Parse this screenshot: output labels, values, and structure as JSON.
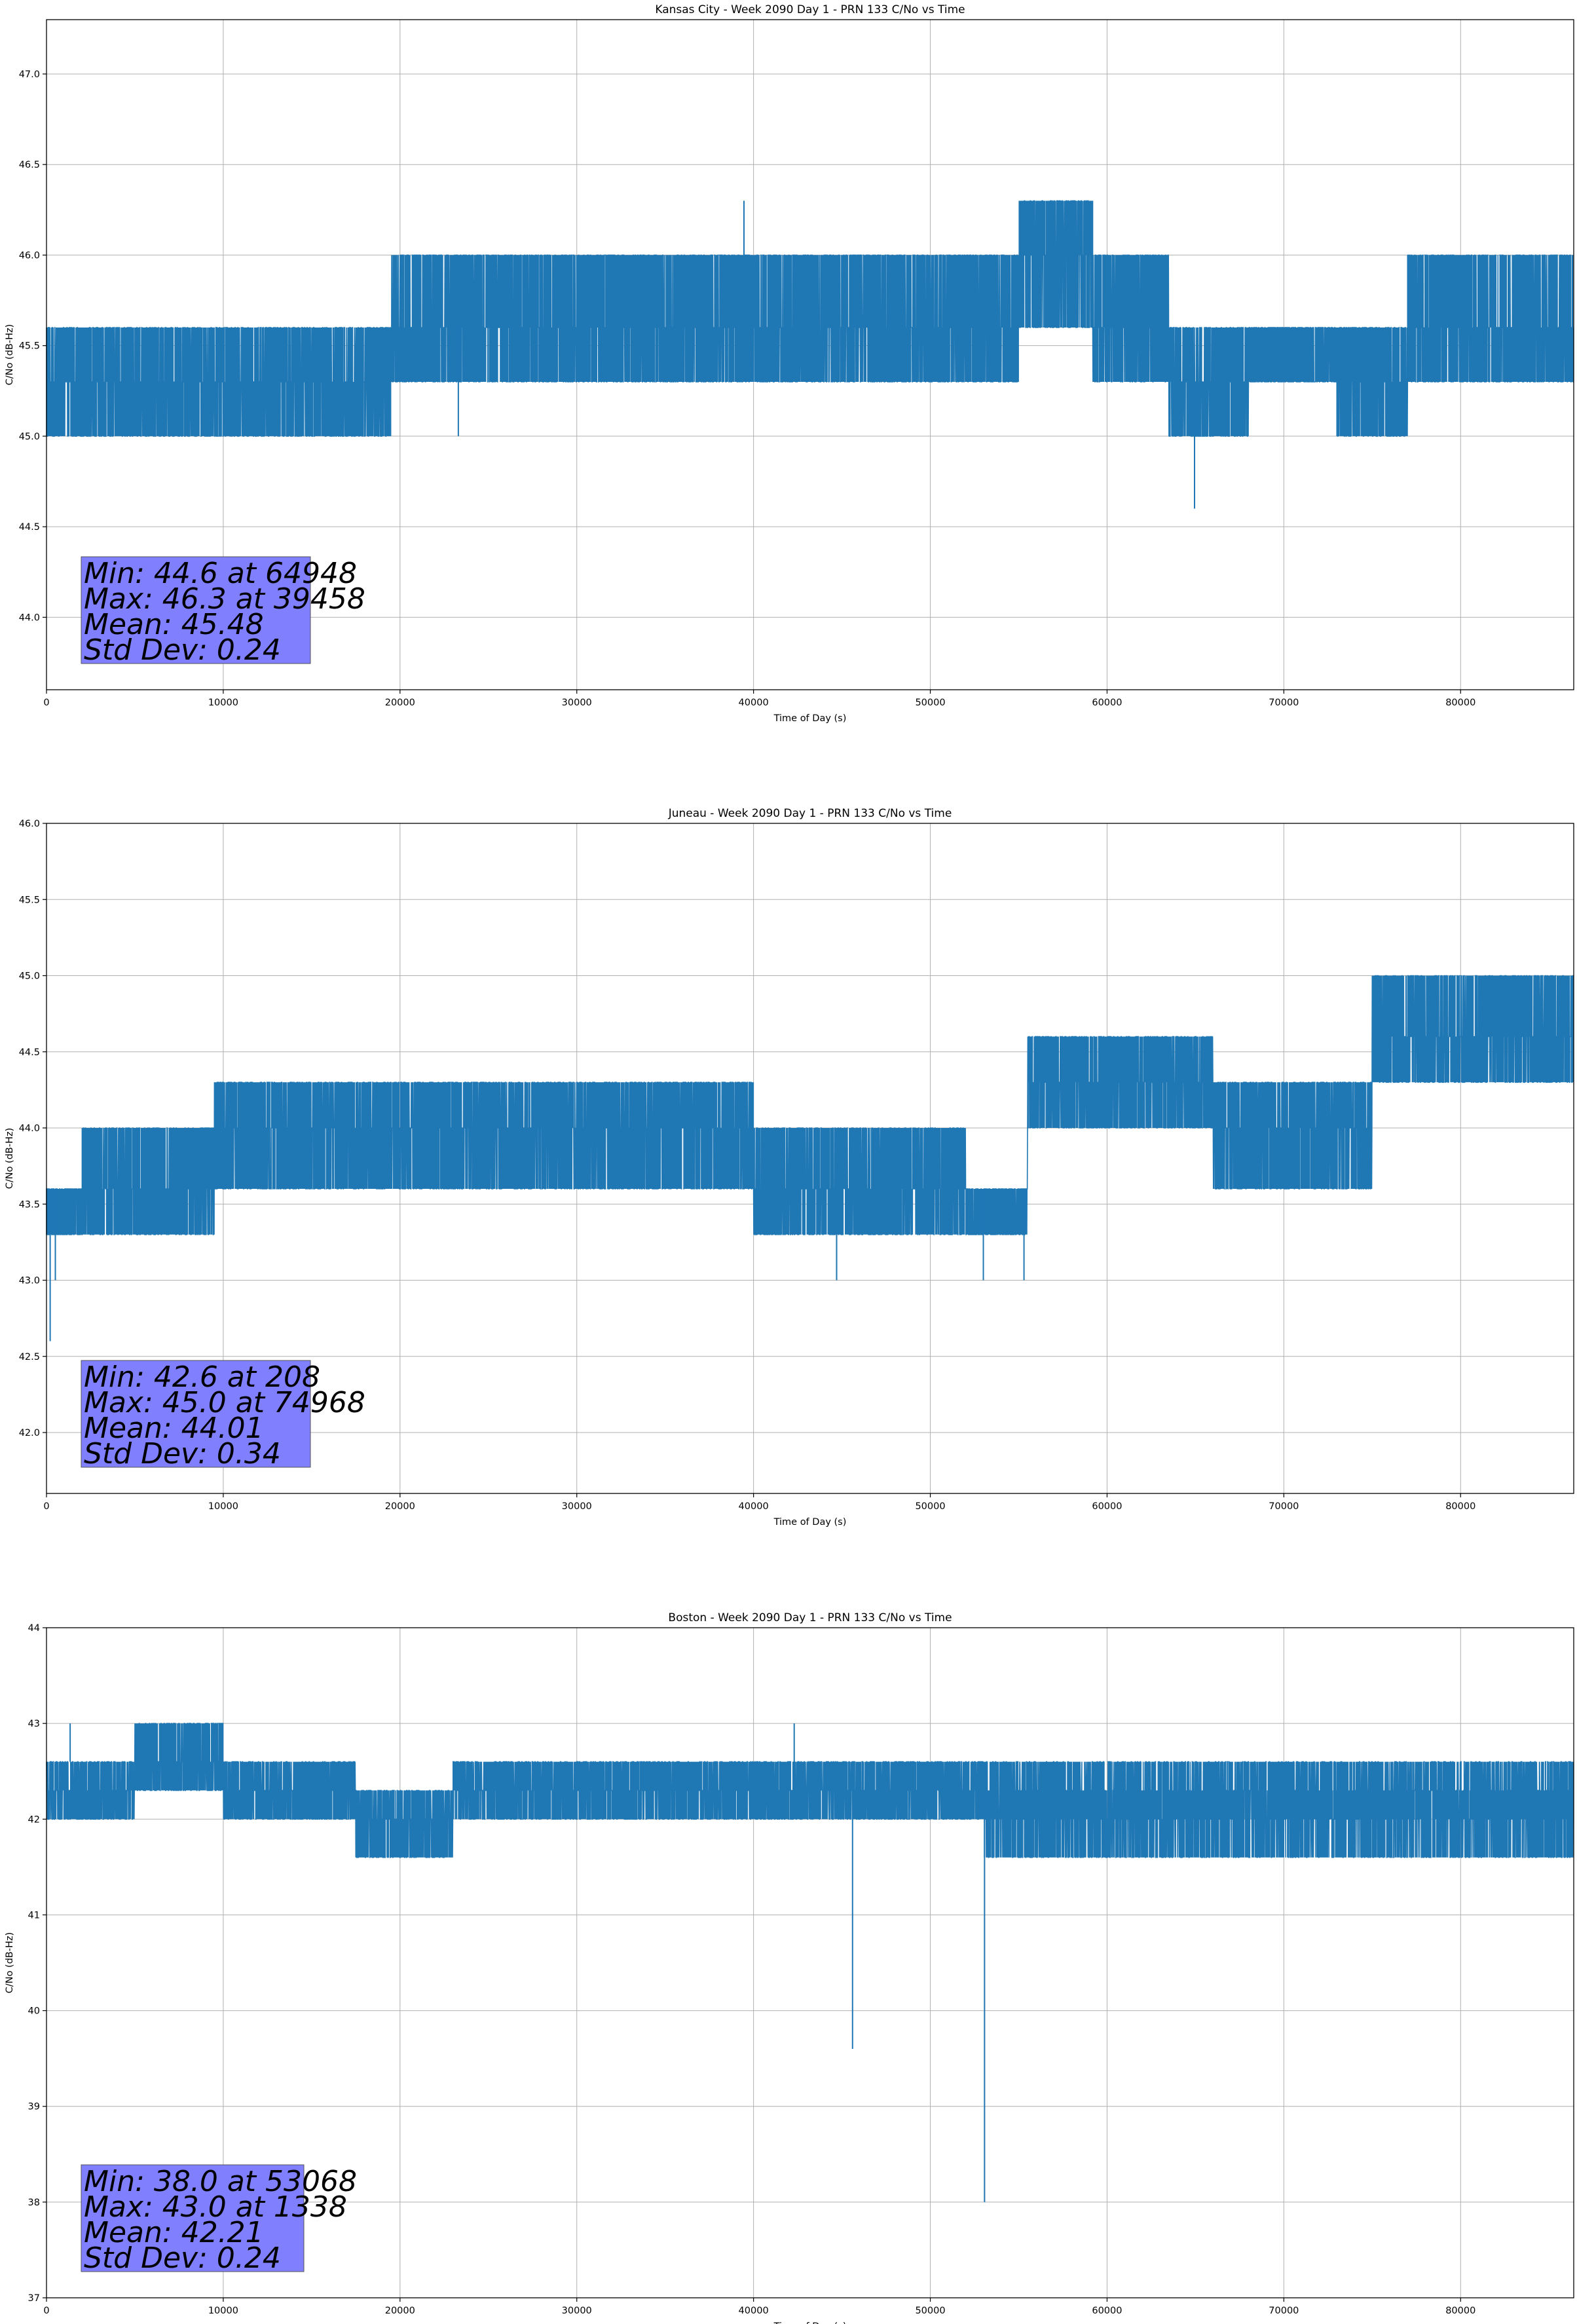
{
  "chart_data": [
    {
      "type": "line",
      "title": "Kansas City - Week 2090 Day 1 - PRN 133 C/No vs Time",
      "xlabel": "Time of Day (s)",
      "ylabel": "C/No (dB-Hz)",
      "xlim": [
        0,
        86400
      ],
      "ylim": [
        43.6,
        47.3
      ],
      "xticks": [
        0,
        10000,
        20000,
        30000,
        40000,
        50000,
        60000,
        70000,
        80000
      ],
      "xtick_labels": [
        "0",
        "10000",
        "20000",
        "30000",
        "40000",
        "50000",
        "60000",
        "70000",
        "80000"
      ],
      "yticks": [
        44.0,
        44.5,
        45.0,
        45.5,
        46.0,
        46.5,
        47.0
      ],
      "ytick_labels": [
        "44.0",
        "44.5",
        "45.0",
        "45.5",
        "46.0",
        "46.5",
        "47.0"
      ],
      "grid": true,
      "line_color": "#1f77b4",
      "stats_box_color": "#8080ff",
      "stats": [
        "Min: 44.6 at 64948",
        "Max: 46.3 at 39458",
        "Mean: 45.48",
        "Std Dev: 0.24"
      ],
      "segments": [
        {
          "start": 0,
          "end": 9000,
          "levels": [
            45.0,
            45.3,
            45.6
          ]
        },
        {
          "start": 9000,
          "end": 19500,
          "levels": [
            45.0,
            45.3,
            45.6
          ]
        },
        {
          "start": 19500,
          "end": 26500,
          "levels": [
            45.3,
            45.6,
            46.0
          ]
        },
        {
          "start": 26500,
          "end": 37500,
          "levels": [
            45.3,
            45.6,
            46.0
          ]
        },
        {
          "start": 37500,
          "end": 55000,
          "levels": [
            45.3,
            45.6,
            46.0
          ]
        },
        {
          "start": 55000,
          "end": 59200,
          "levels": [
            45.6,
            46.0,
            46.3
          ]
        },
        {
          "start": 59200,
          "end": 63500,
          "levels": [
            45.3,
            45.6,
            46.0
          ]
        },
        {
          "start": 63500,
          "end": 68000,
          "levels": [
            45.0,
            45.3,
            45.6
          ]
        },
        {
          "start": 68000,
          "end": 73000,
          "levels": [
            45.3,
            45.6
          ]
        },
        {
          "start": 73000,
          "end": 77000,
          "levels": [
            45.0,
            45.3,
            45.6
          ]
        },
        {
          "start": 77000,
          "end": 86400,
          "levels": [
            45.3,
            45.6,
            46.0
          ]
        }
      ],
      "spikes": [
        {
          "x": 39458,
          "y": 46.3
        },
        {
          "x": 64948,
          "y": 44.6
        },
        {
          "x": 23300,
          "y": 45.0
        }
      ]
    },
    {
      "type": "line",
      "title": "Juneau - Week 2090 Day 1 - PRN 133 C/No vs Time",
      "xlabel": "Time of Day (s)",
      "ylabel": "C/No (dB-Hz)",
      "xlim": [
        0,
        86400
      ],
      "ylim": [
        41.6,
        46.0
      ],
      "xticks": [
        0,
        10000,
        20000,
        30000,
        40000,
        50000,
        60000,
        70000,
        80000
      ],
      "xtick_labels": [
        "0",
        "10000",
        "20000",
        "30000",
        "40000",
        "50000",
        "60000",
        "70000",
        "80000"
      ],
      "yticks": [
        42.0,
        42.5,
        43.0,
        43.5,
        44.0,
        44.5,
        45.0,
        45.5,
        46.0
      ],
      "ytick_labels": [
        "42.0",
        "42.5",
        "43.0",
        "43.5",
        "44.0",
        "44.5",
        "45.0",
        "45.5",
        "46.0"
      ],
      "grid": true,
      "line_color": "#1f77b4",
      "stats_box_color": "#8080ff",
      "stats": [
        "Min: 42.6 at 208",
        "Max: 45.0 at 74968",
        "Mean: 44.01",
        "Std Dev: 0.34"
      ],
      "segments": [
        {
          "start": 0,
          "end": 2000,
          "levels": [
            43.3,
            43.6
          ]
        },
        {
          "start": 2000,
          "end": 9500,
          "levels": [
            43.6,
            44.0,
            43.3
          ]
        },
        {
          "start": 9500,
          "end": 21000,
          "levels": [
            44.0,
            44.3,
            43.6
          ]
        },
        {
          "start": 21000,
          "end": 40000,
          "levels": [
            43.6,
            44.0,
            44.3
          ]
        },
        {
          "start": 40000,
          "end": 52000,
          "levels": [
            43.3,
            43.6,
            44.0
          ]
        },
        {
          "start": 52000,
          "end": 55500,
          "levels": [
            43.3,
            43.6
          ]
        },
        {
          "start": 55500,
          "end": 66000,
          "levels": [
            44.0,
            44.3,
            44.6
          ]
        },
        {
          "start": 66000,
          "end": 75000,
          "levels": [
            43.6,
            44.0,
            44.3
          ]
        },
        {
          "start": 75000,
          "end": 86400,
          "levels": [
            44.3,
            44.6,
            45.0
          ]
        }
      ],
      "spikes": [
        {
          "x": 208,
          "y": 42.6
        },
        {
          "x": 44700,
          "y": 43.0
        },
        {
          "x": 53000,
          "y": 43.0
        },
        {
          "x": 55300,
          "y": 43.0
        },
        {
          "x": 500,
          "y": 43.0
        }
      ]
    },
    {
      "type": "line",
      "title": "Boston - Week 2090 Day 1 - PRN 133 C/No vs Time",
      "xlabel": "Time of Day (s)",
      "ylabel": "C/No (dB-Hz)",
      "xlim": [
        0,
        86400
      ],
      "ylim": [
        37,
        44
      ],
      "xticks": [
        0,
        10000,
        20000,
        30000,
        40000,
        50000,
        60000,
        70000,
        80000
      ],
      "xtick_labels": [
        "0",
        "10000",
        "20000",
        "30000",
        "40000",
        "50000",
        "60000",
        "70000",
        "80000"
      ],
      "yticks": [
        37,
        38,
        39,
        40,
        41,
        42,
        43,
        44
      ],
      "ytick_labels": [
        "37",
        "38",
        "39",
        "40",
        "41",
        "42",
        "43",
        "44"
      ],
      "grid": true,
      "line_color": "#1f77b4",
      "stats_box_color": "#8080ff",
      "stats": [
        "Min: 38.0 at 53068",
        "Max: 43.0 at 1338",
        "Mean: 42.21",
        "Std Dev: 0.24"
      ],
      "segments": [
        {
          "start": 0,
          "end": 5000,
          "levels": [
            42.3,
            42.6,
            42.0
          ]
        },
        {
          "start": 5000,
          "end": 10000,
          "levels": [
            42.6,
            43.0,
            42.3
          ]
        },
        {
          "start": 10000,
          "end": 17500,
          "levels": [
            42.3,
            42.6,
            42.0
          ]
        },
        {
          "start": 17500,
          "end": 23000,
          "levels": [
            41.6,
            42.0,
            42.3
          ]
        },
        {
          "start": 23000,
          "end": 40000,
          "levels": [
            42.0,
            42.3,
            42.6
          ]
        },
        {
          "start": 40000,
          "end": 53000,
          "levels": [
            42.0,
            42.3,
            42.6
          ]
        },
        {
          "start": 53000,
          "end": 86400,
          "levels": [
            41.6,
            42.0,
            42.3,
            42.6
          ]
        }
      ],
      "spikes": [
        {
          "x": 53068,
          "y": 38.0
        },
        {
          "x": 45600,
          "y": 39.6
        },
        {
          "x": 1338,
          "y": 43.0
        },
        {
          "x": 42300,
          "y": 43.0
        }
      ]
    }
  ]
}
